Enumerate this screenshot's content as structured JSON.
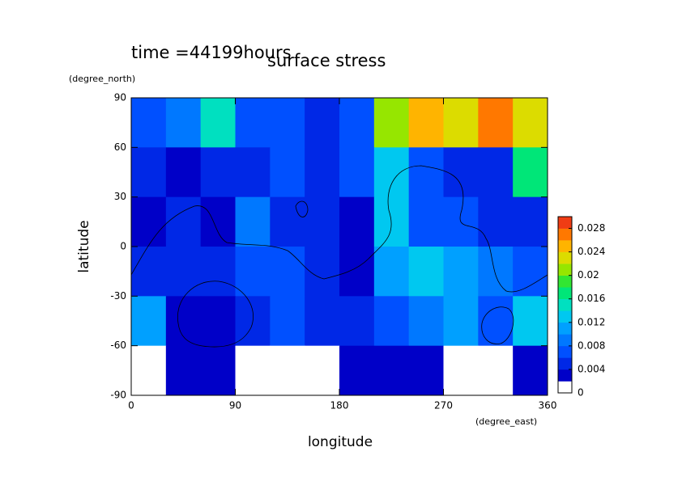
{
  "chart_data": {
    "type": "heatmap",
    "title": "time =44199hours",
    "subtitle": "surface stress",
    "x_label": "longitude",
    "y_label": "latitude",
    "x_unit": "(degree_east)",
    "y_unit": "(degree_north)",
    "x": [
      15,
      45,
      75,
      105,
      135,
      165,
      195,
      225,
      255,
      285,
      315,
      345
    ],
    "y": [
      75,
      45,
      15,
      -15,
      -45,
      -75
    ],
    "z": [
      [
        0.007,
        0.008,
        0.014,
        0.007,
        0.006,
        0.005,
        0.006,
        0.02,
        0.024,
        0.022,
        0.026,
        0.022
      ],
      [
        0.005,
        0.003,
        0.004,
        0.005,
        0.007,
        0.004,
        0.007,
        0.012,
        0.006,
        0.005,
        0.004,
        0.016
      ],
      [
        0.003,
        0.004,
        0.002,
        0.008,
        0.005,
        0.004,
        0.003,
        0.012,
        0.006,
        0.006,
        0.004,
        0.005
      ],
      [
        0.005,
        0.004,
        0.005,
        0.006,
        0.006,
        0.004,
        0.003,
        0.01,
        0.012,
        0.01,
        0.008,
        0.007
      ],
      [
        0.01,
        0.003,
        0.002,
        0.004,
        0.006,
        0.005,
        0.004,
        0.006,
        0.008,
        0.01,
        0.006,
        0.012
      ],
      [
        0.001,
        0.002,
        0.002,
        0.001,
        0.001,
        0.001,
        0.002,
        0.003,
        0.003,
        0.001,
        0.001,
        0.002
      ]
    ],
    "xlim": [
      0,
      360
    ],
    "xticks": [
      0,
      90,
      180,
      270,
      360
    ],
    "ylim": [
      -90,
      90
    ],
    "yticks": [
      -90,
      -60,
      -30,
      0,
      30,
      60,
      90
    ],
    "clim": [
      0,
      0.03
    ],
    "cticks": [
      0,
      0.004,
      0.008,
      0.012,
      0.016,
      0.02,
      0.024,
      0.028
    ],
    "colors": [
      "#ffffff",
      "#0000c8",
      "#0028e6",
      "#0050ff",
      "#0078ff",
      "#00a0ff",
      "#00c8f0",
      "#00e0c0",
      "#00e678",
      "#32e632",
      "#96e600",
      "#dcdc00",
      "#ffb400",
      "#ff7800",
      "#f03c14"
    ]
  }
}
